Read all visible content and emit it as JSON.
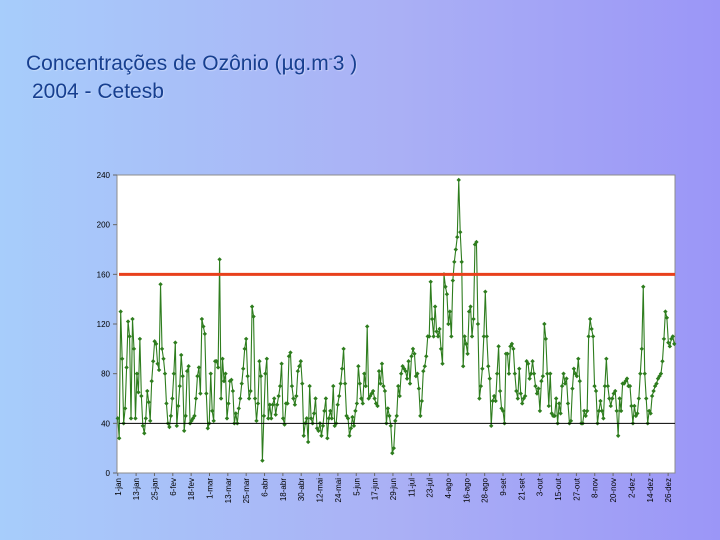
{
  "slide": {
    "title_line1_prefix": "Concentrações de Ozônio (µg.m",
    "title_line1_sup": "-",
    "title_line1_suffix": "3 )",
    "title_line2": "2004 - Cetesb"
  },
  "chart_data": {
    "type": "line",
    "title": "",
    "xlabel": "",
    "ylabel": "",
    "ylim": [
      0,
      240
    ],
    "yticks": [
      0,
      40,
      80,
      120,
      160,
      200,
      240
    ],
    "x_start": "1-jan",
    "x_end": "31-dez",
    "xticks": [
      {
        "label": "1-jan",
        "day": 1
      },
      {
        "label": "13-jan",
        "day": 13
      },
      {
        "label": "25-jan",
        "day": 25
      },
      {
        "label": "6-fev",
        "day": 37
      },
      {
        "label": "18-fev",
        "day": 49
      },
      {
        "label": "1-mar",
        "day": 61
      },
      {
        "label": "13-mar",
        "day": 73
      },
      {
        "label": "25-mar",
        "day": 85
      },
      {
        "label": "6-abr",
        "day": 97
      },
      {
        "label": "18-abr",
        "day": 109
      },
      {
        "label": "30-abr",
        "day": 121
      },
      {
        "label": "12-mai",
        "day": 133
      },
      {
        "label": "24-mai",
        "day": 145
      },
      {
        "label": "5-jun",
        "day": 157
      },
      {
        "label": "17-jun",
        "day": 169
      },
      {
        "label": "29-jun",
        "day": 181
      },
      {
        "label": "11-jul",
        "day": 193
      },
      {
        "label": "23-jul",
        "day": 205
      },
      {
        "label": "4-ago",
        "day": 217
      },
      {
        "label": "16-ago",
        "day": 229
      },
      {
        "label": "28-ago",
        "day": 241
      },
      {
        "label": "9-set",
        "day": 253
      },
      {
        "label": "21-set",
        "day": 265
      },
      {
        "label": "3-out",
        "day": 277
      },
      {
        "label": "15-out",
        "day": 289
      },
      {
        "label": "27-out",
        "day": 301
      },
      {
        "label": "8-nov",
        "day": 313
      },
      {
        "label": "20-nov",
        "day": 325
      },
      {
        "label": "2-dez",
        "day": 337
      },
      {
        "label": "14-dez",
        "day": 349
      },
      {
        "label": "26-dez",
        "day": 361
      }
    ],
    "reference_lines": [
      {
        "value": 160,
        "color": "#e8401c"
      },
      {
        "value": 40,
        "color": "#000000"
      }
    ],
    "grid": false,
    "legend": "none",
    "series": [
      {
        "color": "#2e7d1e",
        "values": [
          44,
          28,
          130,
          92,
          40,
          52,
          85,
          122,
          110,
          44,
          124,
          100,
          44,
          80,
          65,
          108,
          62,
          38,
          32,
          44,
          66,
          57,
          42,
          74,
          90,
          106,
          104,
          88,
          83,
          152,
          100,
          92,
          80,
          56,
          40,
          37,
          46,
          60,
          80,
          105,
          38,
          54,
          70,
          95,
          78,
          34,
          46,
          82,
          86,
          40,
          42,
          44,
          46,
          60,
          78,
          85,
          64,
          124,
          118,
          112,
          64,
          36,
          40,
          80,
          50,
          42,
          90,
          90,
          85,
          172,
          60,
          92,
          74,
          80,
          44,
          56,
          74,
          75,
          66,
          40,
          48,
          40,
          52,
          60,
          72,
          84,
          100,
          108,
          78,
          60,
          66,
          134,
          126,
          60,
          42,
          56,
          90,
          78,
          10,
          46,
          80,
          92,
          44,
          55,
          44,
          55,
          60,
          47,
          55,
          62,
          70,
          88,
          44,
          39,
          56,
          56,
          94,
          97,
          70,
          60,
          55,
          62,
          82,
          86,
          90,
          72,
          30,
          40,
          44,
          25,
          70,
          44,
          40,
          48,
          60,
          36,
          34,
          40,
          30,
          38,
          50,
          60,
          28,
          44,
          50,
          44,
          70,
          38,
          40,
          55,
          62,
          72,
          84,
          100,
          72,
          46,
          44,
          30,
          36,
          45,
          38,
          50,
          56,
          86,
          72,
          60,
          56,
          80,
          70,
          118,
          60,
          62,
          64,
          66,
          60,
          56,
          54,
          82,
          72,
          88,
          70,
          66,
          40,
          52,
          46,
          38,
          16,
          20,
          42,
          46,
          70,
          62,
          80,
          86,
          84,
          82,
          76,
          90,
          72,
          94,
          100,
          96,
          78,
          80,
          68,
          46,
          58,
          82,
          86,
          94,
          110,
          110,
          154,
          124,
          110,
          134,
          114,
          110,
          116,
          100,
          88,
          160,
          150,
          144,
          120,
          130,
          110,
          155,
          170,
          180,
          190,
          236,
          194,
          170,
          86,
          110,
          104,
          96,
          130,
          134,
          110,
          124,
          184,
          186,
          120,
          60,
          70,
          84,
          110,
          146,
          110,
          86,
          76,
          38,
          58,
          62,
          58,
          80,
          102,
          66,
          52,
          50,
          40,
          96,
          96,
          80,
          102,
          104,
          100,
          80,
          66,
          60,
          84,
          64,
          56,
          60,
          62,
          90,
          88,
          76,
          80,
          90,
          80,
          70,
          64,
          68,
          50,
          74,
          78,
          120,
          108,
          80,
          54,
          80,
          48,
          46,
          46,
          60,
          40,
          56,
          48,
          70,
          80,
          72,
          76,
          56,
          40,
          42,
          68,
          84,
          80,
          78,
          92,
          74,
          40,
          40,
          50,
          46,
          50,
          110,
          124,
          116,
          110,
          70,
          66,
          40,
          50,
          58,
          50,
          44,
          70,
          92,
          70,
          60,
          54,
          60,
          64,
          66,
          50,
          30,
          60,
          50,
          72,
          72,
          74,
          76,
          70,
          70,
          54,
          40,
          54,
          46,
          48,
          60,
          80,
          100,
          150,
          80,
          60,
          40,
          50,
          48,
          62,
          66,
          70,
          72,
          76,
          78,
          80,
          90,
          108,
          130,
          125,
          105,
          102,
          108,
          110,
          104
        ]
      }
    ]
  }
}
